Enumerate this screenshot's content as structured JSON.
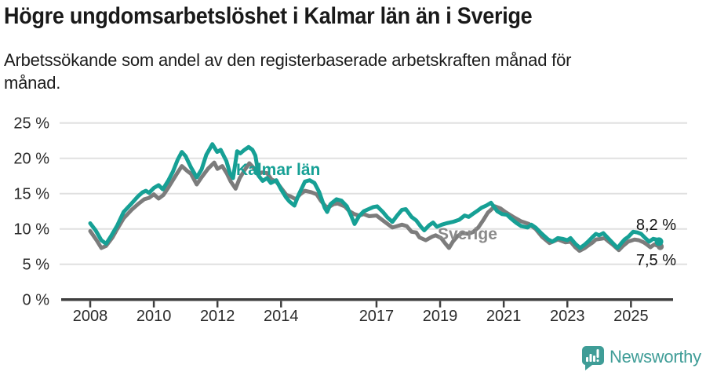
{
  "chart_data": {
    "type": "line",
    "title": "Högre ungdomsarbetslöshet i Kalmar län än i Sverige",
    "subtitle_lines": [
      "Arbetssökande som andel av den registerbaserade arbetskraften månad för",
      "månad."
    ],
    "grid": true,
    "legend": "direct-labels-on-lines",
    "x_axis": {
      "range": [
        2008,
        2025.92
      ],
      "ticks": [
        {
          "value": 2008,
          "label": "2008"
        },
        {
          "value": 2010,
          "label": "2010"
        },
        {
          "value": 2012,
          "label": "2012"
        },
        {
          "value": 2014,
          "label": "2014"
        },
        {
          "value": 2017,
          "label": "2017"
        },
        {
          "value": 2019,
          "label": "2019"
        },
        {
          "value": 2021,
          "label": "2021"
        },
        {
          "value": 2023,
          "label": "2023"
        },
        {
          "value": 2025,
          "label": "2025"
        }
      ]
    },
    "y_axis": {
      "range": [
        0,
        25
      ],
      "unit": "%",
      "ticks": [
        {
          "value": 0,
          "label": "0 %"
        },
        {
          "value": 5,
          "label": "5 %"
        },
        {
          "value": 10,
          "label": "10 %"
        },
        {
          "value": 15,
          "label": "15 %"
        },
        {
          "value": 20,
          "label": "20 %"
        },
        {
          "value": 25,
          "label": "25 %"
        }
      ]
    },
    "series": [
      {
        "name": "Sverige",
        "color": "#7c7c7c",
        "label_color": "#8a8a8a",
        "end_label": "7,5 %",
        "end_value": 7.5,
        "points": [
          [
            2008.0,
            9.7
          ],
          [
            2008.2,
            8.4
          ],
          [
            2008.35,
            7.3
          ],
          [
            2008.5,
            7.6
          ],
          [
            2008.7,
            8.8
          ],
          [
            2008.85,
            10.0
          ],
          [
            2009.05,
            11.5
          ],
          [
            2009.3,
            12.7
          ],
          [
            2009.5,
            13.5
          ],
          [
            2009.7,
            14.2
          ],
          [
            2009.85,
            14.4
          ],
          [
            2010.0,
            14.9
          ],
          [
            2010.15,
            14.3
          ],
          [
            2010.3,
            14.8
          ],
          [
            2010.45,
            15.8
          ],
          [
            2010.6,
            16.9
          ],
          [
            2010.75,
            18.0
          ],
          [
            2010.88,
            18.9
          ],
          [
            2011.05,
            18.2
          ],
          [
            2011.17,
            17.8
          ],
          [
            2011.35,
            16.3
          ],
          [
            2011.5,
            17.3
          ],
          [
            2011.7,
            18.5
          ],
          [
            2011.9,
            19.4
          ],
          [
            2012.0,
            18.5
          ],
          [
            2012.15,
            18.9
          ],
          [
            2012.3,
            17.8
          ],
          [
            2012.42,
            16.7
          ],
          [
            2012.57,
            15.7
          ],
          [
            2012.7,
            17.2
          ],
          [
            2012.85,
            18.3
          ],
          [
            2013.0,
            19.3
          ],
          [
            2013.15,
            18.6
          ],
          [
            2013.27,
            17.7
          ],
          [
            2013.4,
            18.0
          ],
          [
            2013.56,
            17.9
          ],
          [
            2013.7,
            17.0
          ],
          [
            2013.85,
            16.7
          ],
          [
            2014.0,
            15.8
          ],
          [
            2014.17,
            14.8
          ],
          [
            2014.3,
            14.6
          ],
          [
            2014.46,
            14.2
          ],
          [
            2014.6,
            14.9
          ],
          [
            2014.75,
            15.4
          ],
          [
            2014.95,
            15.2
          ],
          [
            2015.12,
            14.9
          ],
          [
            2015.25,
            14.0
          ],
          [
            2015.4,
            13.2
          ],
          [
            2015.5,
            13.1
          ],
          [
            2015.65,
            13.5
          ],
          [
            2015.78,
            13.6
          ],
          [
            2016.0,
            13.2
          ],
          [
            2016.15,
            12.5
          ],
          [
            2016.3,
            12.1
          ],
          [
            2016.45,
            11.9
          ],
          [
            2016.6,
            12.1
          ],
          [
            2016.77,
            11.8
          ],
          [
            2017.0,
            11.9
          ],
          [
            2017.2,
            11.2
          ],
          [
            2017.35,
            10.7
          ],
          [
            2017.5,
            10.2
          ],
          [
            2017.65,
            10.4
          ],
          [
            2017.8,
            10.6
          ],
          [
            2017.95,
            10.4
          ],
          [
            2018.1,
            9.6
          ],
          [
            2018.25,
            9.5
          ],
          [
            2018.35,
            8.8
          ],
          [
            2018.55,
            8.4
          ],
          [
            2018.75,
            8.9
          ],
          [
            2018.86,
            9.1
          ],
          [
            2019.03,
            8.7
          ],
          [
            2019.17,
            7.9
          ],
          [
            2019.28,
            7.3
          ],
          [
            2019.4,
            8.2
          ],
          [
            2019.55,
            9.0
          ],
          [
            2019.7,
            9.4
          ],
          [
            2019.9,
            9.3
          ],
          [
            2020.05,
            9.6
          ],
          [
            2020.2,
            10.2
          ],
          [
            2020.35,
            11.2
          ],
          [
            2020.5,
            12.3
          ],
          [
            2020.72,
            13.2
          ],
          [
            2020.9,
            12.9
          ],
          [
            2021.05,
            12.4
          ],
          [
            2021.3,
            11.7
          ],
          [
            2021.54,
            11.1
          ],
          [
            2021.79,
            10.7
          ],
          [
            2022.0,
            10.0
          ],
          [
            2022.2,
            8.9
          ],
          [
            2022.44,
            8.0
          ],
          [
            2022.6,
            8.3
          ],
          [
            2022.7,
            8.5
          ],
          [
            2022.94,
            8.1
          ],
          [
            2023.1,
            8.2
          ],
          [
            2023.25,
            7.4
          ],
          [
            2023.38,
            6.9
          ],
          [
            2023.55,
            7.3
          ],
          [
            2023.64,
            7.6
          ],
          [
            2023.8,
            8.1
          ],
          [
            2023.9,
            8.5
          ],
          [
            2024.05,
            8.6
          ],
          [
            2024.17,
            8.7
          ],
          [
            2024.3,
            8.2
          ],
          [
            2024.42,
            7.8
          ],
          [
            2024.62,
            7.0
          ],
          [
            2024.75,
            7.6
          ],
          [
            2024.91,
            8.2
          ],
          [
            2025.11,
            8.5
          ],
          [
            2025.25,
            8.4
          ],
          [
            2025.4,
            8.1
          ],
          [
            2025.5,
            7.8
          ],
          [
            2025.61,
            7.4
          ],
          [
            2025.73,
            7.8
          ],
          [
            2025.85,
            7.6
          ],
          [
            2025.92,
            7.5
          ]
        ]
      },
      {
        "name": "Kalmar län",
        "color": "#16a095",
        "label_color": "#16a095",
        "end_label": "8,2 %",
        "end_value": 8.2,
        "points": [
          [
            2008.0,
            10.8
          ],
          [
            2008.17,
            9.8
          ],
          [
            2008.35,
            8.4
          ],
          [
            2008.5,
            7.9
          ],
          [
            2008.67,
            9.1
          ],
          [
            2008.85,
            10.5
          ],
          [
            2009.05,
            12.4
          ],
          [
            2009.3,
            13.6
          ],
          [
            2009.5,
            14.6
          ],
          [
            2009.65,
            15.2
          ],
          [
            2009.75,
            15.4
          ],
          [
            2009.85,
            15.1
          ],
          [
            2010.0,
            15.8
          ],
          [
            2010.15,
            16.2
          ],
          [
            2010.28,
            15.6
          ],
          [
            2010.45,
            16.8
          ],
          [
            2010.6,
            18.1
          ],
          [
            2010.75,
            19.8
          ],
          [
            2010.88,
            20.9
          ],
          [
            2011.0,
            20.3
          ],
          [
            2011.17,
            18.7
          ],
          [
            2011.35,
            17.3
          ],
          [
            2011.5,
            18.4
          ],
          [
            2011.65,
            20.5
          ],
          [
            2011.84,
            22.0
          ],
          [
            2011.99,
            20.9
          ],
          [
            2012.1,
            21.2
          ],
          [
            2012.28,
            19.6
          ],
          [
            2012.4,
            17.8
          ],
          [
            2012.49,
            17.2
          ],
          [
            2012.62,
            21.0
          ],
          [
            2012.72,
            20.7
          ],
          [
            2012.85,
            21.2
          ],
          [
            2012.98,
            21.6
          ],
          [
            2013.1,
            21.2
          ],
          [
            2013.19,
            20.4
          ],
          [
            2013.3,
            17.5
          ],
          [
            2013.42,
            16.8
          ],
          [
            2013.56,
            17.2
          ],
          [
            2013.68,
            16.5
          ],
          [
            2013.85,
            16.9
          ],
          [
            2014.0,
            15.6
          ],
          [
            2014.15,
            14.5
          ],
          [
            2014.26,
            13.9
          ],
          [
            2014.42,
            13.3
          ],
          [
            2014.55,
            14.8
          ],
          [
            2014.75,
            16.7
          ],
          [
            2014.9,
            16.9
          ],
          [
            2015.05,
            16.5
          ],
          [
            2015.2,
            15.2
          ],
          [
            2015.37,
            13.0
          ],
          [
            2015.45,
            12.4
          ],
          [
            2015.55,
            13.5
          ],
          [
            2015.74,
            14.2
          ],
          [
            2015.9,
            14.0
          ],
          [
            2016.07,
            13.2
          ],
          [
            2016.2,
            11.9
          ],
          [
            2016.31,
            10.7
          ],
          [
            2016.45,
            11.8
          ],
          [
            2016.6,
            12.5
          ],
          [
            2016.75,
            12.8
          ],
          [
            2016.9,
            13.1
          ],
          [
            2017.02,
            13.2
          ],
          [
            2017.2,
            12.4
          ],
          [
            2017.35,
            11.6
          ],
          [
            2017.5,
            11.0
          ],
          [
            2017.65,
            11.9
          ],
          [
            2017.8,
            12.7
          ],
          [
            2017.92,
            12.8
          ],
          [
            2018.1,
            11.7
          ],
          [
            2018.25,
            11.2
          ],
          [
            2018.4,
            10.3
          ],
          [
            2018.5,
            9.8
          ],
          [
            2018.65,
            10.5
          ],
          [
            2018.78,
            10.9
          ],
          [
            2018.9,
            10.3
          ],
          [
            2019.05,
            10.6
          ],
          [
            2019.2,
            10.8
          ],
          [
            2019.4,
            11.0
          ],
          [
            2019.6,
            11.3
          ],
          [
            2019.77,
            11.9
          ],
          [
            2019.9,
            11.7
          ],
          [
            2020.02,
            12.1
          ],
          [
            2020.15,
            12.5
          ],
          [
            2020.3,
            13.0
          ],
          [
            2020.45,
            13.3
          ],
          [
            2020.6,
            13.7
          ],
          [
            2020.8,
            12.5
          ],
          [
            2020.95,
            12.1
          ],
          [
            2021.1,
            12.0
          ],
          [
            2021.22,
            11.5
          ],
          [
            2021.38,
            10.9
          ],
          [
            2021.55,
            10.4
          ],
          [
            2021.75,
            10.2
          ],
          [
            2021.87,
            10.6
          ],
          [
            2022.0,
            10.2
          ],
          [
            2022.2,
            9.3
          ],
          [
            2022.4,
            8.5
          ],
          [
            2022.53,
            8.2
          ],
          [
            2022.7,
            8.7
          ],
          [
            2022.85,
            8.6
          ],
          [
            2023.0,
            8.4
          ],
          [
            2023.1,
            8.7
          ],
          [
            2023.25,
            7.9
          ],
          [
            2023.4,
            7.3
          ],
          [
            2023.55,
            7.8
          ],
          [
            2023.65,
            8.2
          ],
          [
            2023.78,
            8.8
          ],
          [
            2023.9,
            9.3
          ],
          [
            2024.0,
            9.1
          ],
          [
            2024.13,
            9.4
          ],
          [
            2024.3,
            8.6
          ],
          [
            2024.45,
            7.9
          ],
          [
            2024.58,
            7.3
          ],
          [
            2024.7,
            8.0
          ],
          [
            2024.8,
            8.5
          ],
          [
            2024.92,
            8.9
          ],
          [
            2025.07,
            9.6
          ],
          [
            2025.2,
            9.5
          ],
          [
            2025.32,
            9.3
          ],
          [
            2025.45,
            8.7
          ],
          [
            2025.57,
            8.2
          ],
          [
            2025.7,
            8.6
          ],
          [
            2025.8,
            8.5
          ],
          [
            2025.88,
            8.2
          ]
        ]
      }
    ],
    "colors": {
      "grid": "#e0e0e0",
      "axis_line": "#3e3e3e",
      "axis_text": "#2b2b2b",
      "end_label_text": "#111111"
    }
  },
  "footer": {
    "brand": "Newsworthy",
    "brand_color": "#3f9d97",
    "logo_icon": "speech-bubble-bar-chart-icon"
  }
}
